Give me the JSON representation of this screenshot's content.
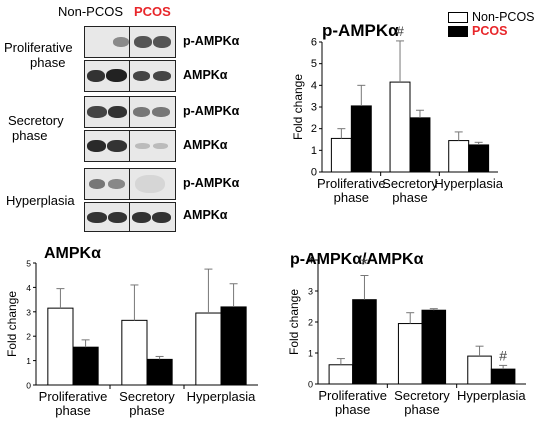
{
  "blot": {
    "group_labels": {
      "non_pcos": "Non-PCOS",
      "pcos": "PCOS"
    },
    "pcos_color": "#e8262a",
    "phases": [
      {
        "label_lines": [
          "Proliferative",
          "phase"
        ],
        "bands": [
          "p-AMPKα",
          "AMPKα"
        ]
      },
      {
        "label_lines": [
          "Secretory",
          "phase"
        ],
        "bands": [
          "p-AMPKα",
          "AMPKα"
        ]
      },
      {
        "label_lines": [
          "Hyperplasia"
        ],
        "bands": [
          "p-AMPKα",
          "AMPKα"
        ]
      }
    ]
  },
  "legend": {
    "non_pcos": "Non-PCOS",
    "pcos": "PCOS",
    "non_pcos_fill": "#ffffff",
    "pcos_fill": "#000000",
    "pcos_text_color": "#e8262a"
  },
  "chart_data": [
    {
      "type": "bar",
      "title": "p-AMPKα",
      "ylabel": "Fold change",
      "ylim": [
        0,
        6
      ],
      "yticks": [
        0,
        1,
        2,
        3,
        4,
        5,
        6
      ],
      "categories": [
        [
          "Proliferative",
          "phase"
        ],
        [
          "Secretory",
          "phase"
        ],
        [
          "Hyperplasia"
        ]
      ],
      "series": [
        {
          "name": "Non-PCOS",
          "values": [
            1.55,
            4.15,
            1.45
          ],
          "errors": [
            0.45,
            1.9,
            0.4
          ],
          "color": "#ffffff"
        },
        {
          "name": "PCOS",
          "values": [
            3.05,
            2.5,
            1.25
          ],
          "errors": [
            0.95,
            0.35,
            0.12
          ],
          "color": "#000000"
        }
      ],
      "annotations": [
        {
          "series": 0,
          "category": 1,
          "text": "#"
        }
      ]
    },
    {
      "type": "bar",
      "title": "AMPKα",
      "ylabel": "Fold change",
      "ylim": [
        0,
        5
      ],
      "yticks": [
        0,
        1,
        2,
        3,
        4,
        5
      ],
      "categories": [
        [
          "Proliferative",
          "phase"
        ],
        [
          "Secretory",
          "phase"
        ],
        [
          "Hyperplasia"
        ]
      ],
      "series": [
        {
          "name": "Non-PCOS",
          "values": [
            3.15,
            2.65,
            2.95
          ],
          "errors": [
            0.8,
            1.45,
            1.8
          ],
          "color": "#ffffff"
        },
        {
          "name": "PCOS",
          "values": [
            1.55,
            1.05,
            3.2
          ],
          "errors": [
            0.3,
            0.12,
            0.95
          ],
          "color": "#000000"
        }
      ],
      "annotations": []
    },
    {
      "type": "bar",
      "title": "p-AMPKα/AMPKα",
      "ylabel": "Fold change",
      "ylim": [
        0,
        4
      ],
      "yticks": [
        0,
        1,
        2,
        3,
        4
      ],
      "categories": [
        [
          "Proliferative",
          "phase"
        ],
        [
          "Secretory",
          "phase"
        ],
        [
          "Hyperplasia"
        ]
      ],
      "series": [
        {
          "name": "Non-PCOS",
          "values": [
            0.62,
            1.95,
            0.9
          ],
          "errors": [
            0.2,
            0.35,
            0.32
          ],
          "color": "#ffffff"
        },
        {
          "name": "PCOS",
          "values": [
            2.72,
            2.38,
            0.48
          ],
          "errors": [
            0.78,
            0.05,
            0.12
          ],
          "color": "#000000"
        }
      ],
      "annotations": [
        {
          "series": 1,
          "category": 0,
          "text": "*"
        },
        {
          "series": 1,
          "category": 2,
          "text": "#"
        }
      ]
    }
  ]
}
